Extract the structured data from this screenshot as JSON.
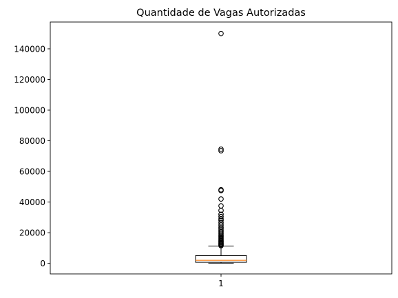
{
  "chart_data": {
    "type": "boxplot",
    "title": "Quantidade de Vagas Autorizadas",
    "xlabel": "",
    "ylabel": "",
    "categories": [
      "1"
    ],
    "ylim": [
      -6900,
      157500
    ],
    "yticks": [
      0,
      20000,
      40000,
      60000,
      80000,
      100000,
      120000,
      140000
    ],
    "ytick_labels": [
      "0",
      "20000",
      "40000",
      "60000",
      "80000",
      "100000",
      "120000",
      "140000"
    ],
    "grid": false,
    "box": {
      "min": 100,
      "q1": 700,
      "median": 2000,
      "q3": 5000,
      "max": 11300,
      "outliers": [
        11500,
        12000,
        12500,
        13000,
        13600,
        14200,
        14800,
        15500,
        16200,
        17000,
        17800,
        18600,
        19500,
        20500,
        21500,
        22500,
        23500,
        25000,
        26500,
        28000,
        29000,
        30500,
        32000,
        34500,
        37500,
        42000,
        47500,
        48000,
        73500,
        74500,
        150000
      ]
    },
    "colors": {
      "box": "#000000",
      "median": "#ff7f0e",
      "flier": "#000000"
    }
  }
}
